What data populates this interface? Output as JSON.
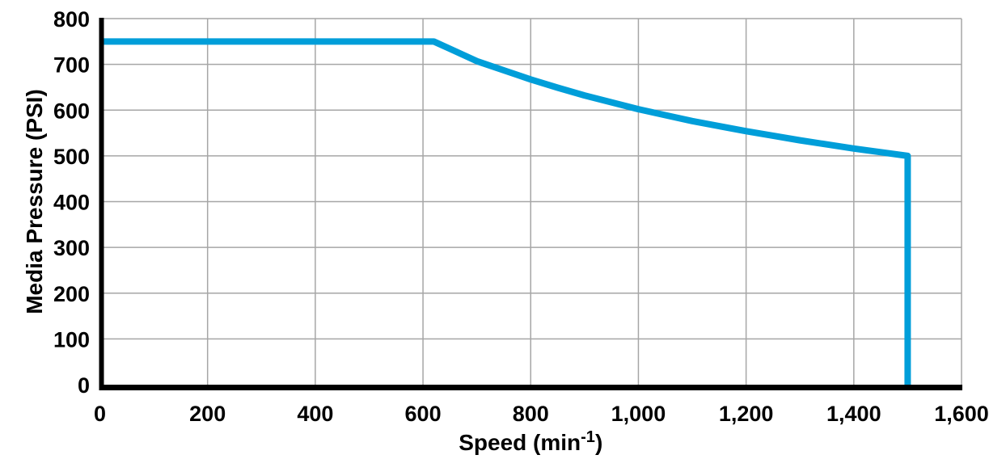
{
  "chart_data": {
    "type": "line",
    "title": "",
    "xlabel": {
      "prefix": "Speed (min",
      "sup": "-1",
      "suffix": ")"
    },
    "ylabel": "Media Pressure (PSI)",
    "xlim": [
      0,
      1600
    ],
    "ylim": [
      0,
      800
    ],
    "grid": true,
    "legend": false,
    "x_ticks": {
      "values": [
        0,
        200,
        400,
        600,
        800,
        1000,
        1200,
        1400,
        1600
      ],
      "labels": [
        "0",
        "200",
        "400",
        "600",
        "800",
        "1,000",
        "1,200",
        "1,400",
        "1,600"
      ]
    },
    "y_ticks": {
      "values": [
        0,
        100,
        200,
        300,
        400,
        500,
        600,
        700,
        800
      ],
      "labels": [
        "0",
        "100",
        "200",
        "300",
        "400",
        "500",
        "600",
        "700",
        "800"
      ]
    },
    "colors": {
      "line": "#009ED9",
      "grid": "#A6A6A6",
      "axis": "#000000",
      "text": "#000000",
      "background": "#FFFFFF"
    },
    "series": [
      {
        "name": "max-media-pressure-vs-speed",
        "color": "#009ED9",
        "stroke_width": 8,
        "points": [
          [
            0,
            750
          ],
          [
            620,
            750
          ],
          [
            650,
            734
          ],
          [
            700,
            707
          ],
          [
            750,
            687
          ],
          [
            800,
            667
          ],
          [
            850,
            649
          ],
          [
            900,
            632
          ],
          [
            950,
            617
          ],
          [
            1000,
            602
          ],
          [
            1050,
            589
          ],
          [
            1100,
            576
          ],
          [
            1150,
            565
          ],
          [
            1200,
            554
          ],
          [
            1250,
            544
          ],
          [
            1300,
            534
          ],
          [
            1350,
            525
          ],
          [
            1400,
            516
          ],
          [
            1450,
            508
          ],
          [
            1500,
            500
          ],
          [
            1500,
            0
          ]
        ]
      }
    ]
  }
}
